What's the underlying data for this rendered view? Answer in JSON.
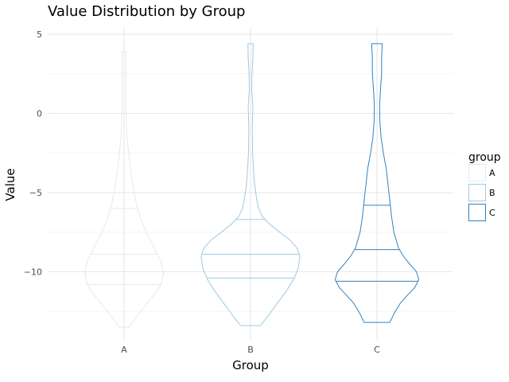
{
  "chart_data": {
    "type": "violin",
    "title": "Value Distribution by Group",
    "xlabel": "Group",
    "ylabel": "Value",
    "ylim": [
      -14.3,
      5.4
    ],
    "yticks": [
      5,
      0,
      -5,
      -10
    ],
    "ytick_labels": [
      "5",
      "0",
      "−5",
      "−10"
    ],
    "categories": [
      "A",
      "B",
      "C"
    ],
    "legend": {
      "title": "group",
      "position": "right",
      "entries": [
        "A",
        "B",
        "C"
      ]
    },
    "series": [
      {
        "group": "A",
        "color": "#deebf7",
        "min": -13.5,
        "max": 3.9,
        "quantiles": [
          -10.8,
          -8.9,
          -6.0
        ],
        "density": [
          [
            -13.5,
            0.08
          ],
          [
            -12.8,
            0.22
          ],
          [
            -12.0,
            0.4
          ],
          [
            -11.3,
            0.55
          ],
          [
            -10.8,
            0.64
          ],
          [
            -10.0,
            0.68
          ],
          [
            -9.3,
            0.63
          ],
          [
            -8.5,
            0.52
          ],
          [
            -7.5,
            0.38
          ],
          [
            -6.5,
            0.27
          ],
          [
            -5.5,
            0.2
          ],
          [
            -4.5,
            0.15
          ],
          [
            -3.5,
            0.11
          ],
          [
            -2.5,
            0.08
          ],
          [
            -1.5,
            0.05
          ],
          [
            -0.5,
            0.04
          ],
          [
            1.0,
            0.035
          ],
          [
            2.5,
            0.035
          ],
          [
            3.9,
            0.035
          ]
        ]
      },
      {
        "group": "B",
        "color": "#9ecae1",
        "min": -13.4,
        "max": 4.4,
        "quantiles": [
          -10.4,
          -8.9,
          -6.7
        ],
        "density": [
          [
            -13.4,
            0.17
          ],
          [
            -12.8,
            0.3
          ],
          [
            -12.0,
            0.46
          ],
          [
            -11.2,
            0.62
          ],
          [
            -10.5,
            0.74
          ],
          [
            -9.8,
            0.82
          ],
          [
            -9.0,
            0.85
          ],
          [
            -8.5,
            0.8
          ],
          [
            -8.0,
            0.68
          ],
          [
            -7.5,
            0.5
          ],
          [
            -7.0,
            0.33
          ],
          [
            -6.5,
            0.2
          ],
          [
            -6.0,
            0.14
          ],
          [
            -5.5,
            0.11
          ],
          [
            -5.0,
            0.09
          ],
          [
            -4.5,
            0.07
          ],
          [
            -3.5,
            0.05
          ],
          [
            -2.5,
            0.035
          ],
          [
            -1.0,
            0.03
          ],
          [
            0.5,
            0.04
          ],
          [
            1.5,
            0.02
          ],
          [
            2.5,
            0.025
          ],
          [
            3.5,
            0.04
          ],
          [
            4.4,
            0.045
          ]
        ]
      },
      {
        "group": "C",
        "color": "#3182bd",
        "min": -13.2,
        "max": 4.4,
        "quantiles": [
          -10.6,
          -8.6,
          -5.8
        ],
        "density": [
          [
            -13.2,
            0.22
          ],
          [
            -12.6,
            0.3
          ],
          [
            -12.0,
            0.4
          ],
          [
            -11.5,
            0.52
          ],
          [
            -11.0,
            0.65
          ],
          [
            -10.5,
            0.72
          ],
          [
            -10.0,
            0.68
          ],
          [
            -9.5,
            0.56
          ],
          [
            -9.0,
            0.45
          ],
          [
            -8.5,
            0.37
          ],
          [
            -7.5,
            0.29
          ],
          [
            -6.5,
            0.25
          ],
          [
            -5.5,
            0.22
          ],
          [
            -4.5,
            0.19
          ],
          [
            -3.5,
            0.16
          ],
          [
            -2.5,
            0.11
          ],
          [
            -1.5,
            0.07
          ],
          [
            -0.5,
            0.05
          ],
          [
            0.5,
            0.045
          ],
          [
            1.5,
            0.06
          ],
          [
            2.5,
            0.08
          ],
          [
            3.5,
            0.08
          ],
          [
            4.4,
            0.09
          ]
        ]
      }
    ],
    "grid": true
  }
}
